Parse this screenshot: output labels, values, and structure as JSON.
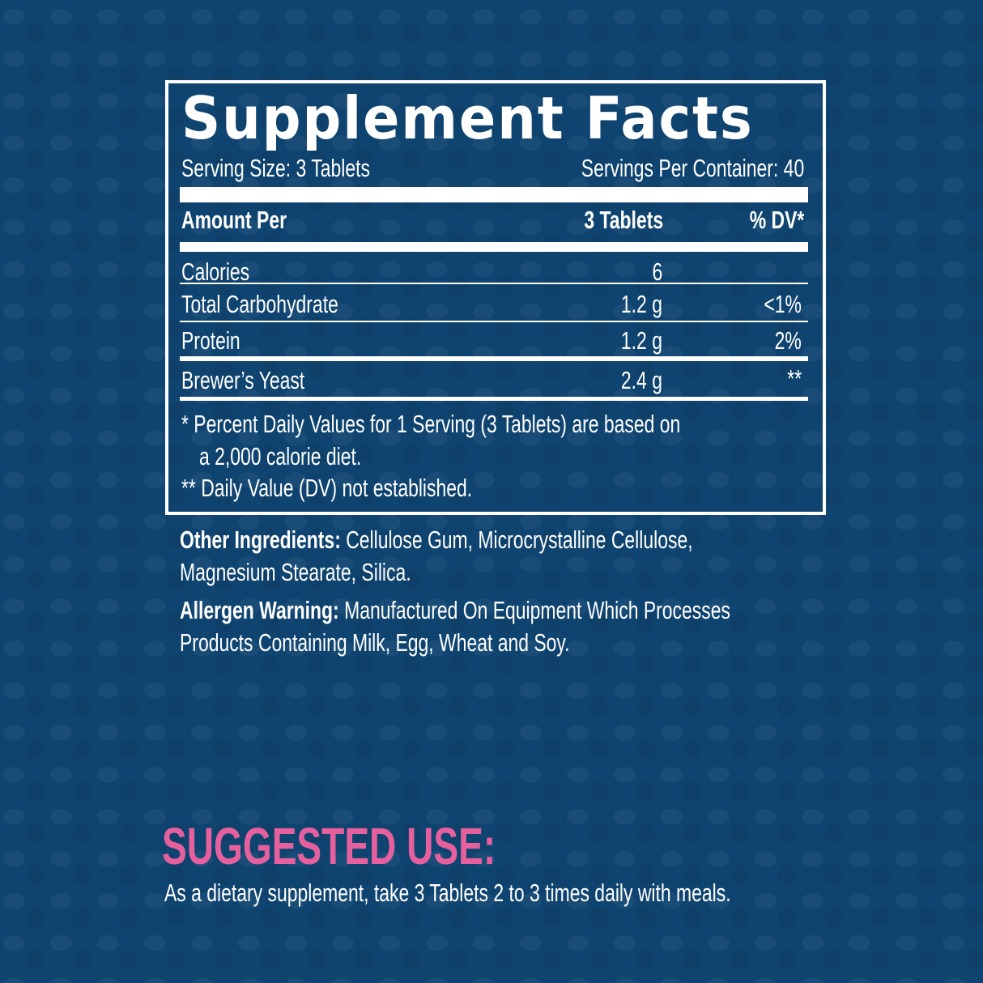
{
  "title": "Supplement Facts",
  "serving_size": "Serving Size: 3 Tablets",
  "servings_per_container": "Servings Per Container: 40",
  "header": {
    "amount_per": "Amount Per",
    "serving": "3 Tablets",
    "dv": "% DV*"
  },
  "rows": [
    {
      "name": "Calories",
      "amount": "6",
      "dv": ""
    },
    {
      "name": "Total Carbohydrate",
      "amount": "1.2 g",
      "dv": "<1%"
    },
    {
      "name": "Protein",
      "amount": "1.2 g",
      "dv": "2%"
    },
    {
      "name": "Brewer’s Yeast",
      "amount": "2.4 g",
      "dv": "**"
    }
  ],
  "footnotes": [
    "* Percent Daily Values for 1 Serving (3 Tablets) are based on",
    "a 2,000 calorie diet.",
    "** Daily Value (DV) not established."
  ],
  "other_ingredients": {
    "label": "Other Ingredients:",
    "line1": "Cellulose Gum, Microcrystalline Cellulose,",
    "line2": "Magnesium Stearate, Silica."
  },
  "allergen": {
    "label": "Allergen Warning:",
    "line1": "Manufactured On Equipment Which Processes",
    "line2": "Products Containing Milk, Egg, Wheat and Soy."
  },
  "suggested_use": {
    "heading": "SUGGESTED USE:",
    "text": "As a dietary supplement, take 3 Tablets 2 to 3 times daily with meals."
  },
  "colors": {
    "background": "#0f4470",
    "accent": "#e7609e",
    "text": "#ffffff"
  }
}
